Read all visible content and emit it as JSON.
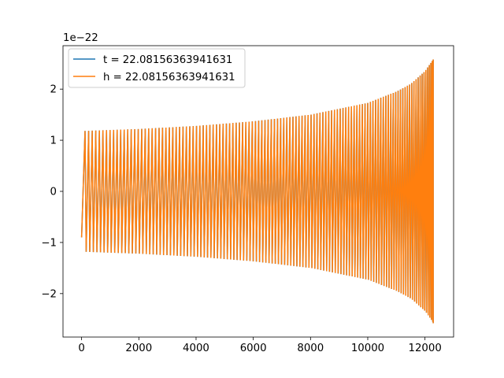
{
  "chart_data": {
    "type": "line",
    "title": "",
    "xlabel": "",
    "ylabel": "",
    "y_offset_label": "1e−22",
    "xlim": [
      -650,
      13000
    ],
    "ylim": [
      -2.85,
      2.85
    ],
    "x_ticks": [
      0,
      2000,
      4000,
      6000,
      8000,
      10000,
      12000
    ],
    "x_tick_labels": [
      "0",
      "2000",
      "4000",
      "6000",
      "8000",
      "10000",
      "12000"
    ],
    "y_ticks": [
      -2,
      -1,
      0,
      1,
      2
    ],
    "y_tick_labels": [
      "−2",
      "−1",
      "0",
      "1",
      "2"
    ],
    "grid": false,
    "legend_position": "upper-left",
    "series": [
      {
        "name": "t = 22.08156363941631",
        "color": "#1f77b4",
        "x_range": [
          0,
          12288
        ],
        "envelope": {
          "x": [
            0,
            2000,
            4000,
            6000,
            8000,
            10000,
            11000,
            11500,
            12000,
            12288
          ],
          "amplitude": [
            1.18,
            1.22,
            1.28,
            1.37,
            1.5,
            1.73,
            1.95,
            2.1,
            2.35,
            2.58
          ]
        },
        "start_value": -0.9
      },
      {
        "name": "h = 22.08156363941631",
        "color": "#ff7f0e",
        "x_range": [
          0,
          12288
        ],
        "envelope": {
          "x": [
            0,
            2000,
            4000,
            6000,
            8000,
            10000,
            11000,
            11500,
            12000,
            12288
          ],
          "amplitude": [
            1.18,
            1.22,
            1.28,
            1.37,
            1.5,
            1.73,
            1.95,
            2.1,
            2.35,
            2.58
          ]
        },
        "start_value": -0.9
      }
    ]
  }
}
